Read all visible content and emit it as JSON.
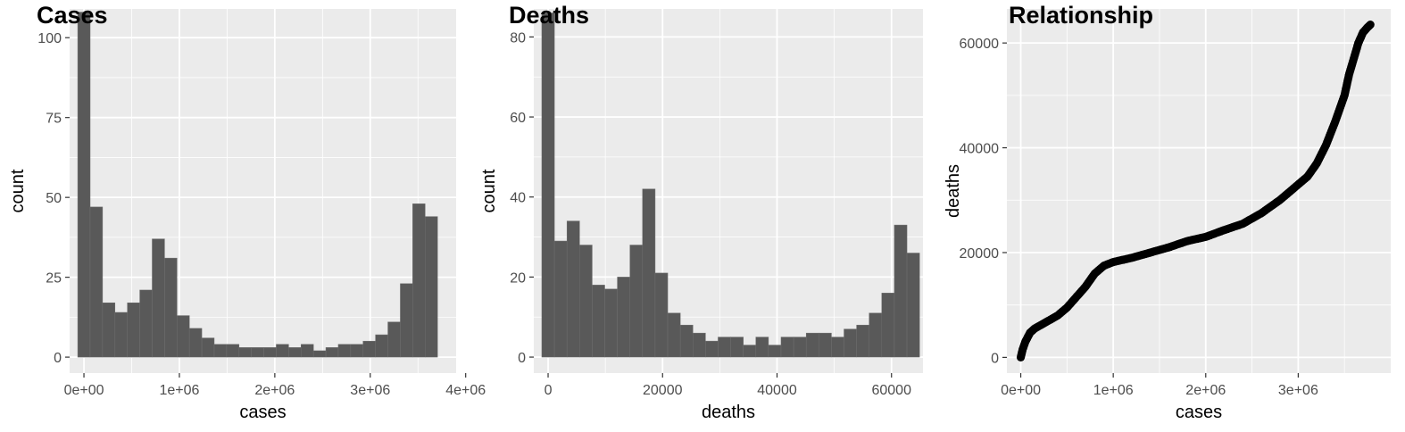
{
  "chart_data": [
    {
      "type": "bar",
      "title": "Cases",
      "xlabel": "cases",
      "ylabel": "count",
      "xlim": [
        -150000,
        3900000
      ],
      "ylim": [
        -5,
        109
      ],
      "xticks": [
        0,
        1000000,
        2000000,
        3000000,
        4000000
      ],
      "xtick_labels": [
        "0e+00",
        "1e+06",
        "2e+06",
        "3e+06",
        "4e+06"
      ],
      "yticks": [
        0,
        25,
        50,
        75,
        100
      ],
      "ytick_labels": [
        "0",
        "25",
        "50",
        "75",
        "100"
      ],
      "bin_width": 130000,
      "bin_start": -65000,
      "values": [
        108,
        47,
        17,
        14,
        17,
        21,
        37,
        31,
        13,
        9,
        6,
        4,
        4,
        3,
        3,
        3,
        4,
        3,
        4,
        2,
        3,
        4,
        4,
        5,
        7,
        11,
        23,
        48,
        44
      ],
      "fill": "#595959",
      "grid": true
    },
    {
      "type": "bar",
      "title": "Deaths",
      "xlabel": "deaths",
      "ylabel": "count",
      "xlim": [
        -2500,
        65500
      ],
      "ylim": [
        -4,
        87
      ],
      "xticks": [
        0,
        20000,
        40000,
        60000
      ],
      "xtick_labels": [
        "0",
        "20000",
        "40000",
        "60000"
      ],
      "yticks": [
        0,
        20,
        40,
        60,
        80
      ],
      "ytick_labels": [
        "0",
        "20",
        "40",
        "60",
        "80"
      ],
      "bin_width": 2200,
      "bin_start": -1100,
      "values": [
        86,
        29,
        34,
        28,
        18,
        17,
        20,
        28,
        42,
        21,
        11,
        8,
        6,
        4,
        5,
        5,
        3,
        5,
        3,
        5,
        5,
        6,
        6,
        5,
        7,
        8,
        11,
        16,
        33,
        26
      ],
      "fill": "#595959",
      "grid": true
    },
    {
      "type": "scatter",
      "title": "Relationship",
      "xlabel": "cases",
      "ylabel": "deaths",
      "xlim": [
        -150000,
        4000000
      ],
      "ylim": [
        -3000,
        66500
      ],
      "xticks": [
        0,
        1000000,
        2000000,
        3000000
      ],
      "xtick_labels": [
        "0e+00",
        "1e+06",
        "2e+06",
        "3e+06"
      ],
      "yticks": [
        0,
        20000,
        40000,
        60000
      ],
      "ytick_labels": [
        "0",
        "20000",
        "40000",
        "60000"
      ],
      "x": [
        0,
        20000,
        50000,
        100000,
        150000,
        200000,
        300000,
        400000,
        500000,
        600000,
        700000,
        800000,
        900000,
        1000000,
        1200000,
        1400000,
        1600000,
        1800000,
        2000000,
        2200000,
        2400000,
        2600000,
        2800000,
        3000000,
        3100000,
        3200000,
        3300000,
        3400000,
        3500000,
        3550000,
        3600000,
        3650000,
        3700000,
        3750000,
        3780000
      ],
      "y": [
        0,
        1500,
        3000,
        4700,
        5500,
        6000,
        7000,
        8000,
        9500,
        11500,
        13500,
        16000,
        17500,
        18200,
        19000,
        20000,
        21000,
        22200,
        23000,
        24300,
        25500,
        27500,
        30000,
        33000,
        34500,
        37000,
        40500,
        45000,
        50000,
        54000,
        57000,
        60000,
        62000,
        63000,
        63500
      ],
      "point_color": "#000000",
      "grid": true
    }
  ]
}
